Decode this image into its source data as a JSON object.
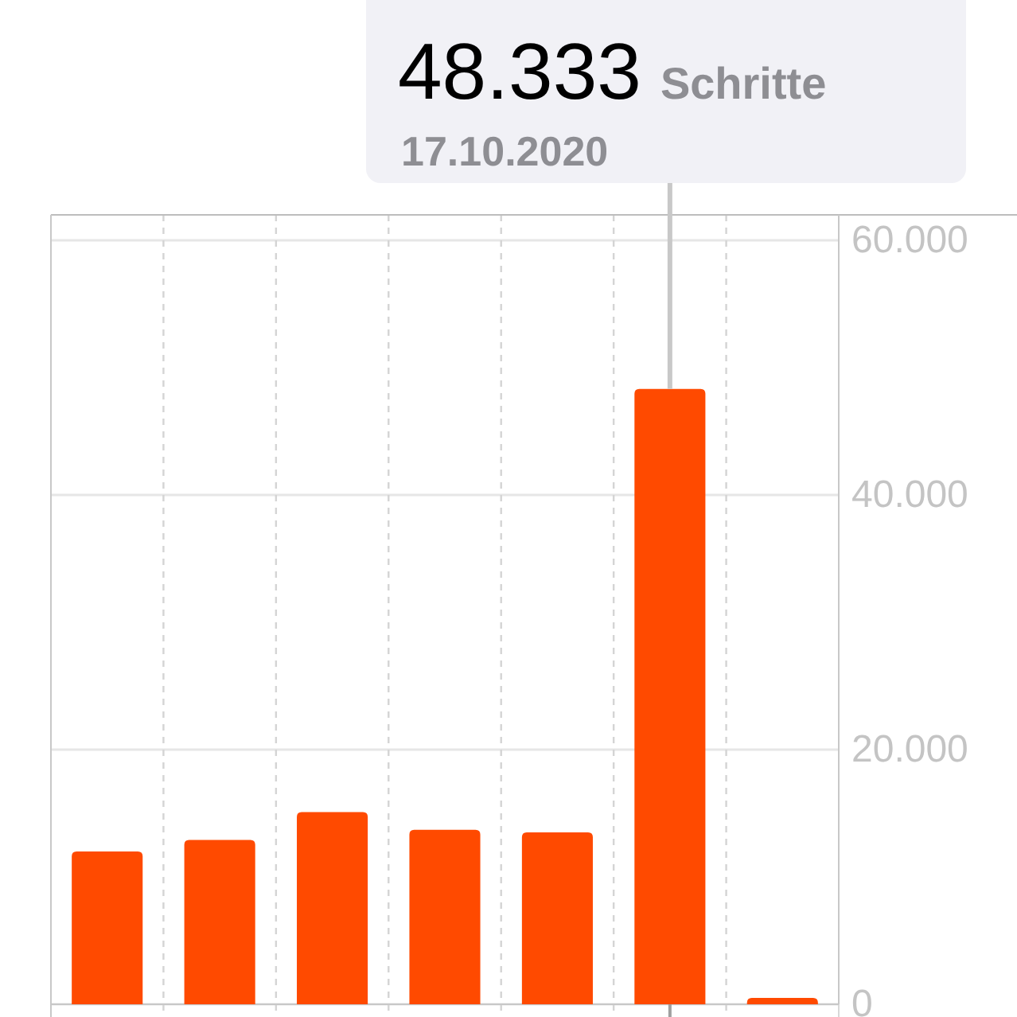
{
  "chart_data": {
    "type": "bar",
    "categories": [
      null,
      null,
      null,
      null,
      null,
      null,
      null
    ],
    "values": [
      12000,
      12900,
      15100,
      13700,
      13500,
      48333,
      500
    ],
    "value_labels": [
      null,
      null,
      null,
      null,
      null,
      "48.333",
      null
    ],
    "color": "#ff4a00",
    "ylim": [
      0,
      62000
    ],
    "yticks": [
      {
        "value": 0,
        "label": "0"
      },
      {
        "value": 20000,
        "label": "20.000"
      },
      {
        "value": 40000,
        "label": "40.000"
      },
      {
        "value": 60000,
        "label": "60.000"
      }
    ],
    "grid": true,
    "annotations": [
      "Schritte",
      "17.10.2020"
    ]
  }
}
